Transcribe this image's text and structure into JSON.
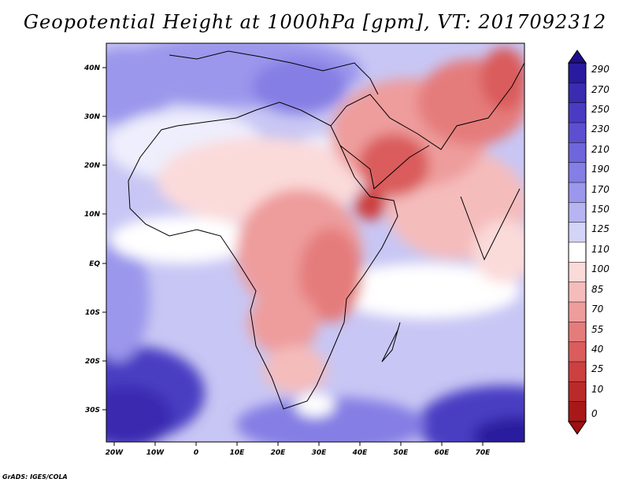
{
  "title": "Geopotential Height at 1000hPa [gpm], VT: 2017092312",
  "credit": "GrADS: IGES/COLA",
  "lat_ticks": [
    "40N",
    "30N",
    "20N",
    "10N",
    "EQ",
    "10S",
    "20S",
    "30S"
  ],
  "lon_ticks": [
    "20W",
    "10W",
    "0",
    "10E",
    "20E",
    "30E",
    "40E",
    "50E",
    "60E",
    "70E"
  ],
  "colorbar": {
    "labels": [
      "290",
      "270",
      "250",
      "230",
      "210",
      "190",
      "170",
      "150",
      "125",
      "110",
      "100",
      "85",
      "70",
      "55",
      "40",
      "25",
      "10",
      "0"
    ],
    "colors": [
      "#2a1a9e",
      "#3a2bb0",
      "#4a3cc2",
      "#5c50d0",
      "#6f66dc",
      "#857ee4",
      "#9b97ec",
      "#b7b4f2",
      "#d4d3f8",
      "#ffffff",
      "#fbdada",
      "#f5bcbc",
      "#ee9c9c",
      "#e57c7c",
      "#da5c5c",
      "#cc4040",
      "#bb2a2a",
      "#a81818"
    ]
  },
  "colors": {
    "frame": "#000000",
    "ocean_base": "#c8c6f4",
    "land_base": "#f6c4c4"
  }
}
